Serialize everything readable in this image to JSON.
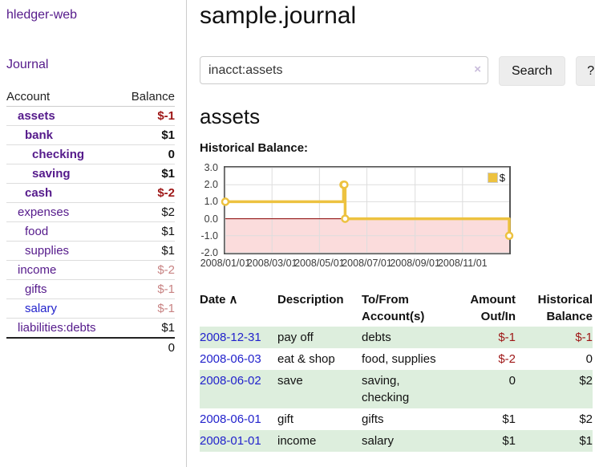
{
  "app": {
    "title": "hledger-web"
  },
  "sidebar": {
    "journal_link": "Journal",
    "accounts": {
      "col_account": "Account",
      "col_balance": "Balance",
      "rows": [
        {
          "label": "assets",
          "balance": "$-1",
          "indent": 1,
          "bold": true,
          "label_color": "purple",
          "balance_color": "dark-red"
        },
        {
          "label": "bank",
          "balance": "$1",
          "indent": 2,
          "bold": true,
          "label_color": "purple",
          "balance_color": "black"
        },
        {
          "label": "checking",
          "balance": "0",
          "indent": 3,
          "bold": true,
          "label_color": "purple",
          "balance_color": "black"
        },
        {
          "label": "saving",
          "balance": "$1",
          "indent": 3,
          "bold": true,
          "label_color": "purple",
          "balance_color": "black"
        },
        {
          "label": "cash",
          "balance": "$-2",
          "indent": 2,
          "bold": true,
          "label_color": "purple",
          "balance_color": "dark-red"
        },
        {
          "label": "expenses",
          "balance": "$2",
          "indent": 1,
          "bold": false,
          "label_color": "purple",
          "balance_color": "black"
        },
        {
          "label": "food",
          "balance": "$1",
          "indent": 2,
          "bold": false,
          "label_color": "purple",
          "balance_color": "black"
        },
        {
          "label": "supplies",
          "balance": "$1",
          "indent": 2,
          "bold": false,
          "label_color": "purple",
          "balance_color": "black"
        },
        {
          "label": "income",
          "balance": "$-2",
          "indent": 1,
          "bold": false,
          "label_color": "purple",
          "balance_color": "light-red"
        },
        {
          "label": "gifts",
          "balance": "$-1",
          "indent": 2,
          "bold": false,
          "label_color": "purple",
          "balance_color": "light-red"
        },
        {
          "label": "salary",
          "balance": "$-1",
          "indent": 2,
          "bold": false,
          "label_color": "blue",
          "balance_color": "light-red"
        },
        {
          "label": "liabilities:debts",
          "balance": "$1",
          "indent": 1,
          "bold": false,
          "label_color": "purple",
          "balance_color": "black"
        }
      ],
      "total": "0"
    }
  },
  "main": {
    "title": "sample.journal",
    "search": {
      "value": "inacct:assets",
      "clear_icon": "×",
      "search_button": "Search",
      "help_button": "?"
    },
    "account_heading": "assets",
    "section_label": "Historical Balance:"
  },
  "chart_data": {
    "type": "line",
    "step": true,
    "title": "Historical Balance:",
    "series": [
      {
        "name": "$",
        "points": [
          {
            "x": "2008-01-01",
            "y": 1
          },
          {
            "x": "2008-06-01",
            "y": 2
          },
          {
            "x": "2008-06-02",
            "y": 2
          },
          {
            "x": "2008-06-03",
            "y": 0
          },
          {
            "x": "2008-12-31",
            "y": -1
          }
        ]
      }
    ],
    "x_range": [
      "2008-01-01",
      "2008-12-31"
    ],
    "x_ticks": [
      {
        "value": "2008-01-01",
        "label": "2008/01/01"
      },
      {
        "value": "2008-03-01",
        "label": "2008/03/01"
      },
      {
        "value": "2008-05-01",
        "label": "2008/05/01"
      },
      {
        "value": "2008-07-01",
        "label": "2008/07/01"
      },
      {
        "value": "2008-09-01",
        "label": "2008/09/01"
      },
      {
        "value": "2008-11-01",
        "label": "2008/11/01"
      }
    ],
    "y_ticks": [
      {
        "value": 3,
        "label": "3.0"
      },
      {
        "value": 2,
        "label": "2.0"
      },
      {
        "value": 1,
        "label": "1.0"
      },
      {
        "value": 0,
        "label": "0.0"
      },
      {
        "value": -1,
        "label": "-1.0"
      },
      {
        "value": -2,
        "label": "-2.0"
      }
    ],
    "ylim": [
      -2,
      3
    ],
    "grid": true,
    "legend": {
      "label": "$",
      "position": "top-right"
    },
    "colors": {
      "line": "#edc240",
      "marker_fill": "#ffffff",
      "negative_fill": "#fbdcdc",
      "zero_line": "#8b0000",
      "grid": "#dddddd",
      "frame": "#545454"
    }
  },
  "register": {
    "headers": {
      "date": "Date",
      "sort_icon": "∧",
      "description": "Description",
      "accounts_line1": "To/From",
      "accounts_line2": "Account(s)",
      "amount_line1": "Amount",
      "amount_line2": "Out/In",
      "balance_line1": "Historical",
      "balance_line2": "Balance"
    },
    "rows": [
      {
        "date": "2008-12-31",
        "description": "pay off",
        "accounts": [
          "debts"
        ],
        "amount": "$-1",
        "amount_negative": true,
        "balance": "$-1",
        "balance_negative": true
      },
      {
        "date": "2008-06-03",
        "description": "eat & shop",
        "accounts": [
          "food, supplies"
        ],
        "amount": "$-2",
        "amount_negative": true,
        "balance": "0",
        "balance_negative": false
      },
      {
        "date": "2008-06-02",
        "description": "save",
        "accounts": [
          "saving,",
          "checking"
        ],
        "amount": "0",
        "amount_negative": false,
        "balance": "$2",
        "balance_negative": false
      },
      {
        "date": "2008-06-01",
        "description": "gift",
        "accounts": [
          "gifts"
        ],
        "amount": "$1",
        "amount_negative": false,
        "balance": "$2",
        "balance_negative": false
      },
      {
        "date": "2008-01-01",
        "description": "income",
        "accounts": [
          "salary"
        ],
        "amount": "$1",
        "amount_negative": false,
        "balance": "$1",
        "balance_negative": false
      }
    ]
  },
  "colors": {
    "purple_link": "#551a8b",
    "blue_link": "#2222cc",
    "dark_red": "#9e1616",
    "light_red": "#c88383",
    "row_stripe_green": "#ddeedd"
  }
}
